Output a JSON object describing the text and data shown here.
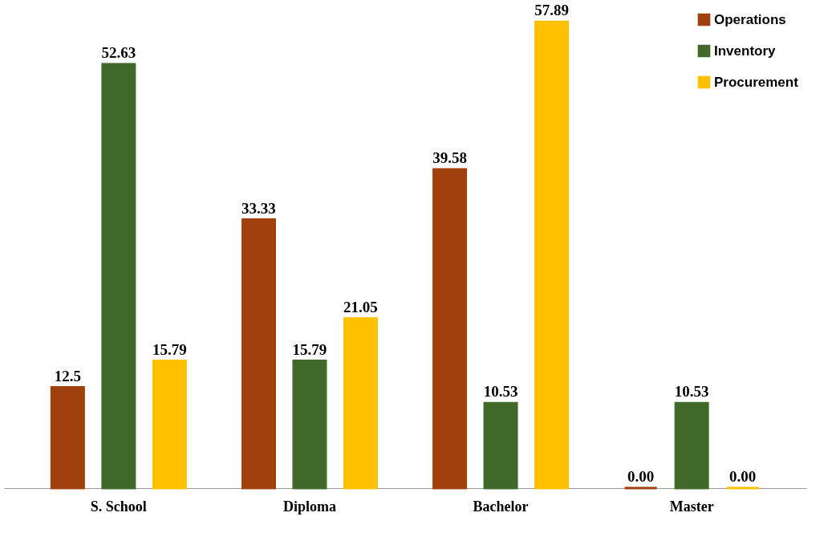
{
  "chart_data": {
    "type": "bar",
    "categories": [
      "S. School",
      "Diploma",
      "Bachelor",
      "Master"
    ],
    "series": [
      {
        "name": "Operations",
        "color": "#a0410d",
        "values": [
          12.5,
          33.33,
          39.58,
          0
        ],
        "value_labels": [
          "12.5",
          "33.33",
          "39.58",
          "0.00"
        ]
      },
      {
        "name": "Inventory",
        "color": "#41692a",
        "values": [
          52.63,
          15.79,
          10.53,
          10.53
        ],
        "value_labels": [
          "52.63",
          "15.79",
          "10.53",
          "10.53"
        ]
      },
      {
        "name": "Procurement",
        "color": "#ffc000",
        "values": [
          15.79,
          21.05,
          57.89,
          0
        ],
        "value_labels": [
          "15.79",
          "21.05",
          "57.89",
          "0.00"
        ]
      }
    ],
    "legend": "top right",
    "grid": false
  }
}
